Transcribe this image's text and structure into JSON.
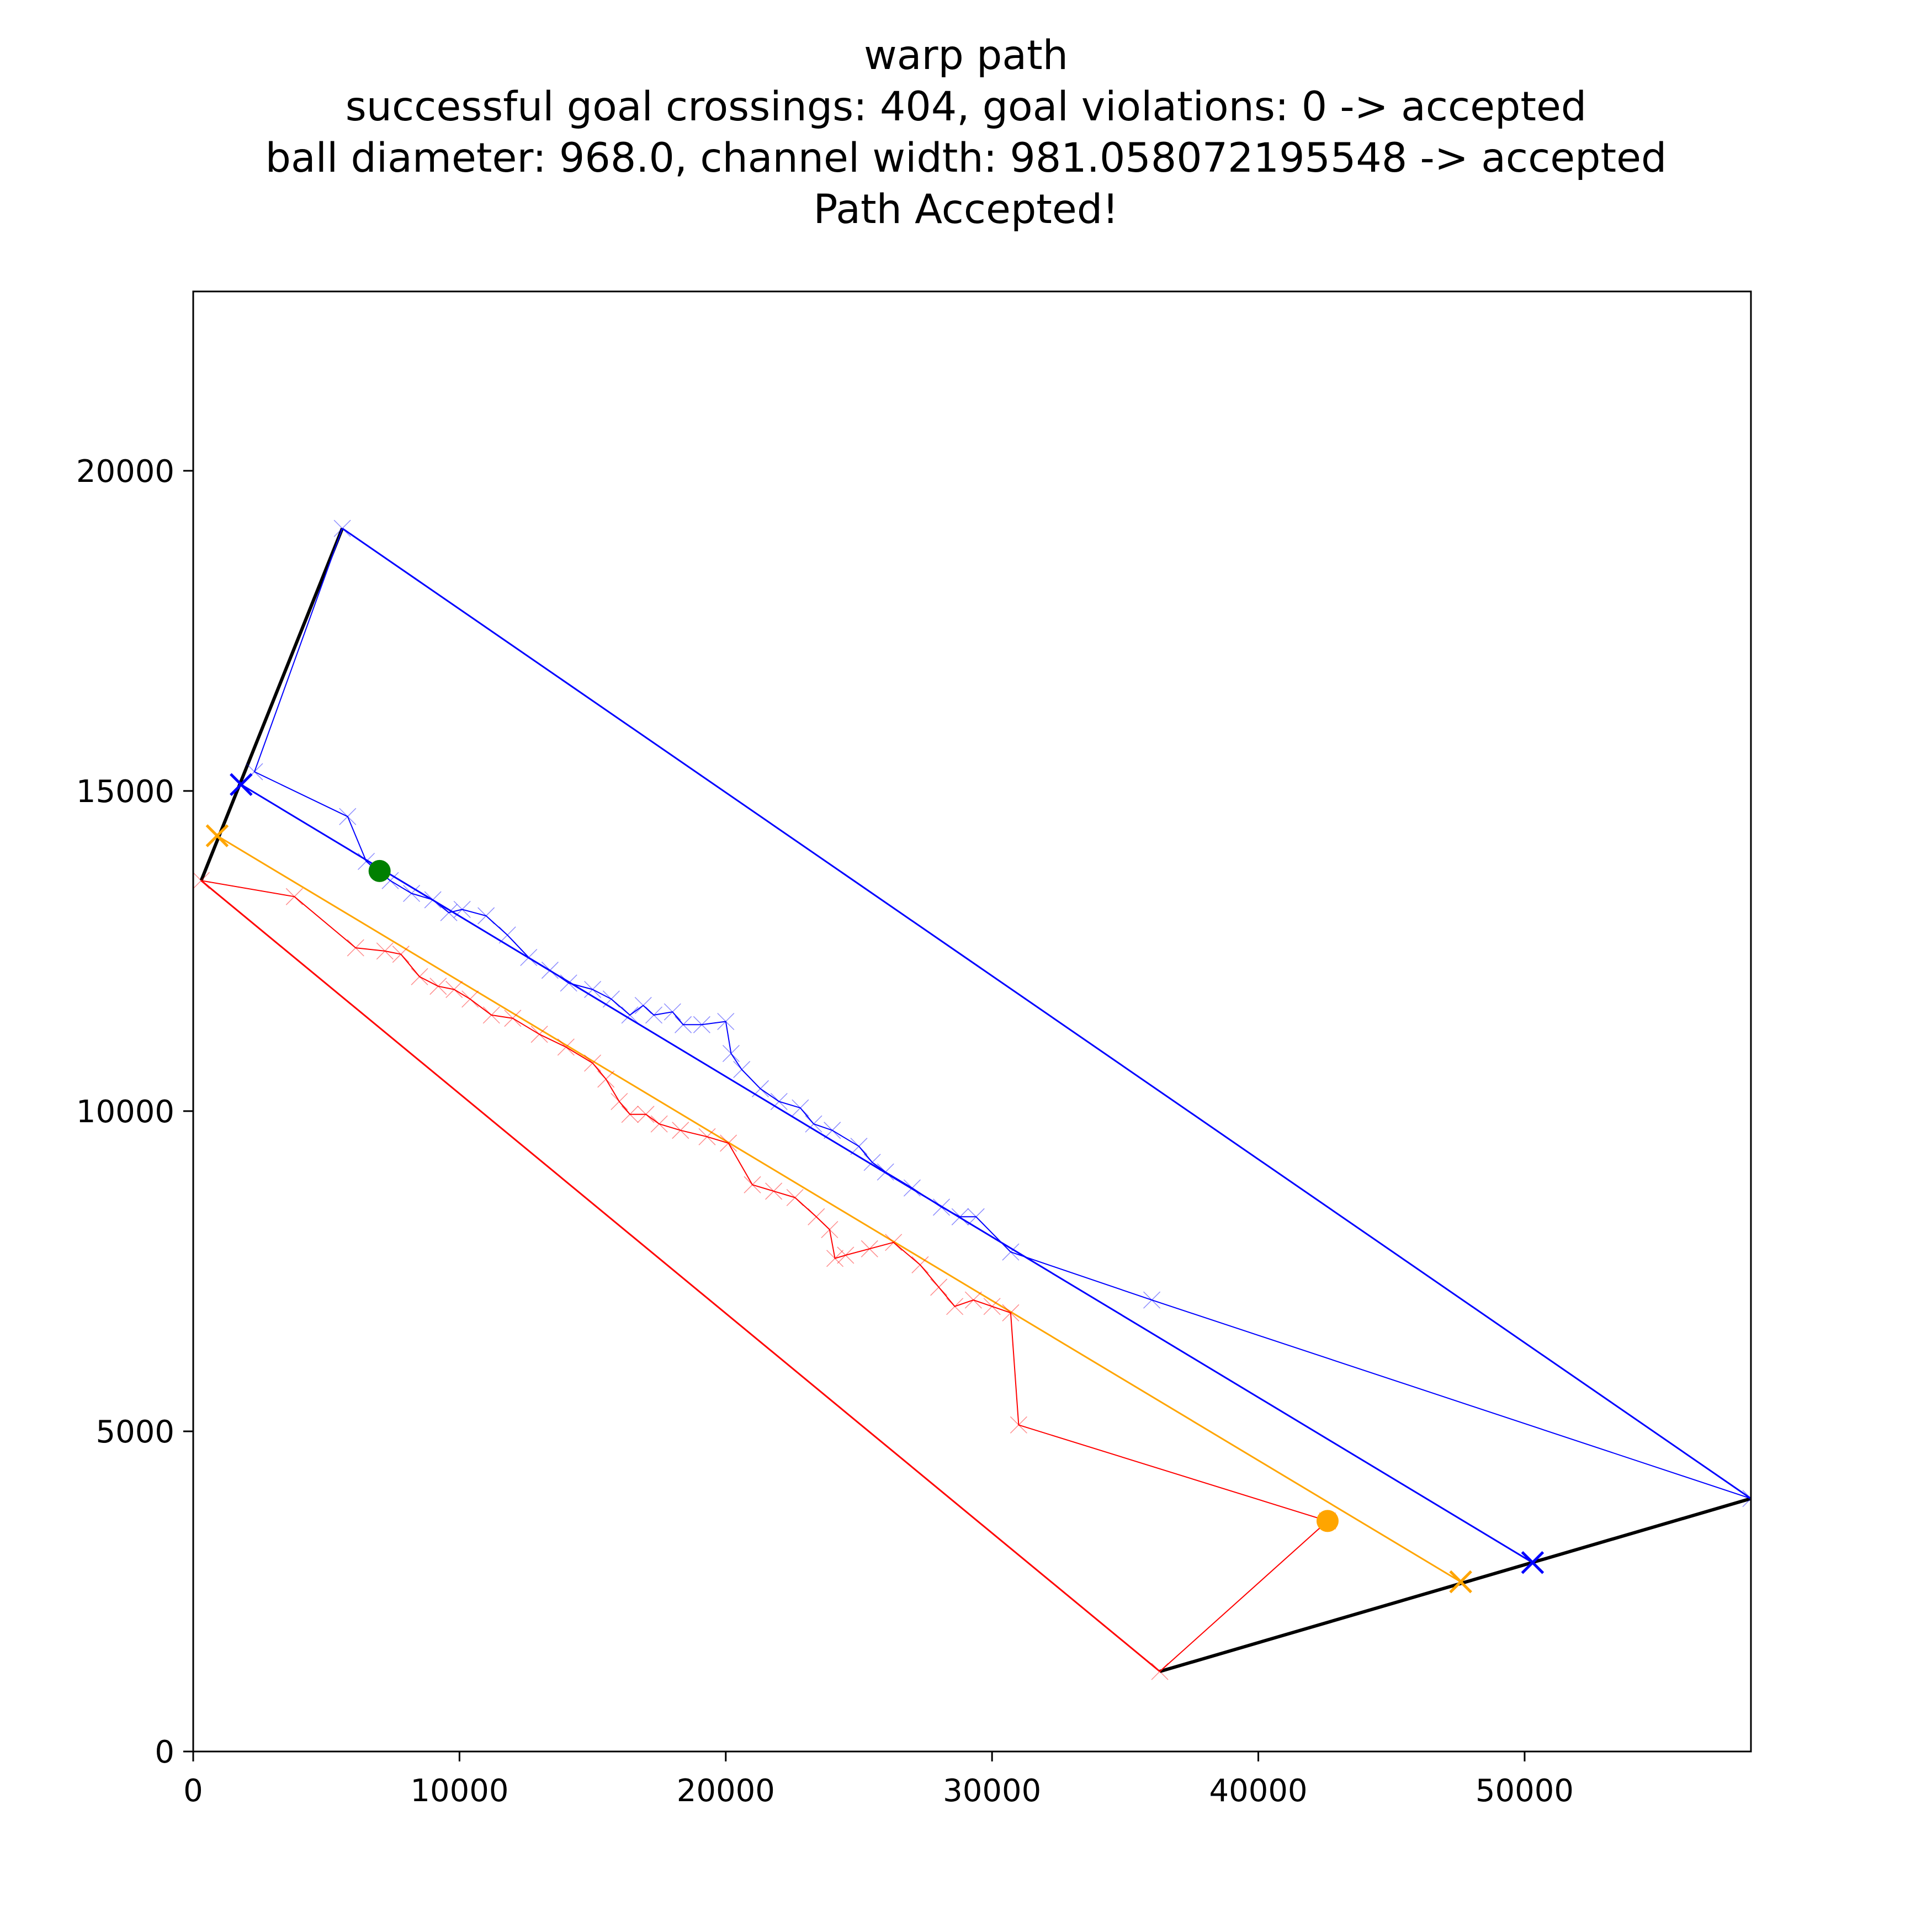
{
  "chart_data": {
    "type": "line",
    "title_lines": [
      "warp path",
      "successful goal crossings: 404, goal violations: 0 -> accepted",
      "ball diameter: 968.0, channel width: 981.058072195548 -> accepted",
      "Path Accepted!"
    ],
    "xlabel": "",
    "ylabel": "",
    "xlim": [
      0,
      58500
    ],
    "ylim": [
      0,
      22800
    ],
    "xticks": [
      0,
      10000,
      20000,
      30000,
      40000,
      50000
    ],
    "yticks": [
      0,
      5000,
      10000,
      15000,
      20000
    ],
    "grid": false,
    "colors": {
      "blue": "#0000ff",
      "red": "#ff0000",
      "orange": "#ffa500",
      "green": "#008000",
      "black": "#000000"
    },
    "series": [
      {
        "color": "#000000",
        "role": "goal-line",
        "x": [
          300,
          5600
        ],
        "y": [
          13600,
          19100
        ]
      },
      {
        "color": "#000000",
        "role": "goal-line",
        "x": [
          36300,
          58500
        ],
        "y": [
          1250,
          3950
        ]
      },
      {
        "color": "#0000ff",
        "role": "outer-boundary",
        "x": [
          5600,
          58500
        ],
        "y": [
          19100,
          3950
        ]
      },
      {
        "color": "#ff0000",
        "role": "outer-boundary",
        "x": [
          300,
          36300
        ],
        "y": [
          13600,
          1250
        ]
      },
      {
        "color": "#ffa500",
        "role": "center-line",
        "x": [
          900,
          47600
        ],
        "y": [
          14300,
          2650
        ]
      },
      {
        "color": "#0000ff",
        "role": "straight-path",
        "x": [
          1800,
          50300
        ],
        "y": [
          15100,
          2950
        ]
      },
      {
        "color": "#0000ff",
        "role": "warp-path-blue",
        "x": [
          5600,
          2300,
          5800,
          6500,
          7400,
          8200,
          9000,
          9600,
          10100,
          11000,
          11800,
          12600,
          13400,
          14100,
          15000,
          15700,
          16400,
          16900,
          17300,
          18000,
          18400,
          19100,
          20000,
          20200,
          20600,
          21300,
          22000,
          22800,
          23300,
          24000,
          25000,
          25500,
          26000,
          27000,
          28100,
          28800,
          29400,
          30700,
          36000,
          58500
        ],
        "y": [
          19100,
          15300,
          14600,
          13900,
          13600,
          13400,
          13300,
          13100,
          13150,
          13050,
          12750,
          12400,
          12200,
          12000,
          11900,
          11750,
          11500,
          11650,
          11500,
          11550,
          11350,
          11350,
          11400,
          10900,
          10650,
          10350,
          10150,
          10050,
          9800,
          9700,
          9450,
          9200,
          9050,
          8800,
          8500,
          8350,
          8350,
          7800,
          7050,
          3950
        ]
      },
      {
        "color": "#ff0000",
        "role": "warp-path-red",
        "x": [
          300,
          3800,
          6100,
          7200,
          7800,
          8500,
          9200,
          9800,
          10400,
          11200,
          12000,
          13000,
          14000,
          15000,
          15500,
          16000,
          16400,
          17000,
          17500,
          18300,
          19300,
          20100,
          21000,
          21800,
          22600,
          23400,
          23900,
          24100,
          24500,
          25400,
          26300,
          27300,
          28000,
          28600,
          29300,
          30000,
          30700,
          31000,
          42600,
          36300
        ],
        "y": [
          13600,
          13350,
          12550,
          12500,
          12450,
          12100,
          11950,
          11900,
          11750,
          11500,
          11450,
          11200,
          11000,
          10750,
          10500,
          10150,
          9950,
          9950,
          9800,
          9700,
          9600,
          9500,
          8850,
          8750,
          8650,
          8350,
          8150,
          7700,
          7750,
          7850,
          7950,
          7600,
          7250,
          6950,
          7050,
          6950,
          6850,
          5100,
          3600,
          1250
        ]
      },
      {
        "color": "#0000ff",
        "role": "goal-marker",
        "marker": "x",
        "x": [
          1800,
          50300
        ],
        "y": [
          15100,
          2950
        ]
      },
      {
        "color": "#ffa500",
        "role": "goal-marker",
        "marker": "x",
        "x": [
          900,
          47600
        ],
        "y": [
          14300,
          2650
        ]
      },
      {
        "color": "#008000",
        "role": "start-point",
        "marker": "o",
        "x": [
          7000
        ],
        "y": [
          13750
        ]
      },
      {
        "color": "#ffa500",
        "role": "end-point",
        "marker": "o",
        "x": [
          42600
        ],
        "y": [
          3600
        ]
      }
    ]
  }
}
